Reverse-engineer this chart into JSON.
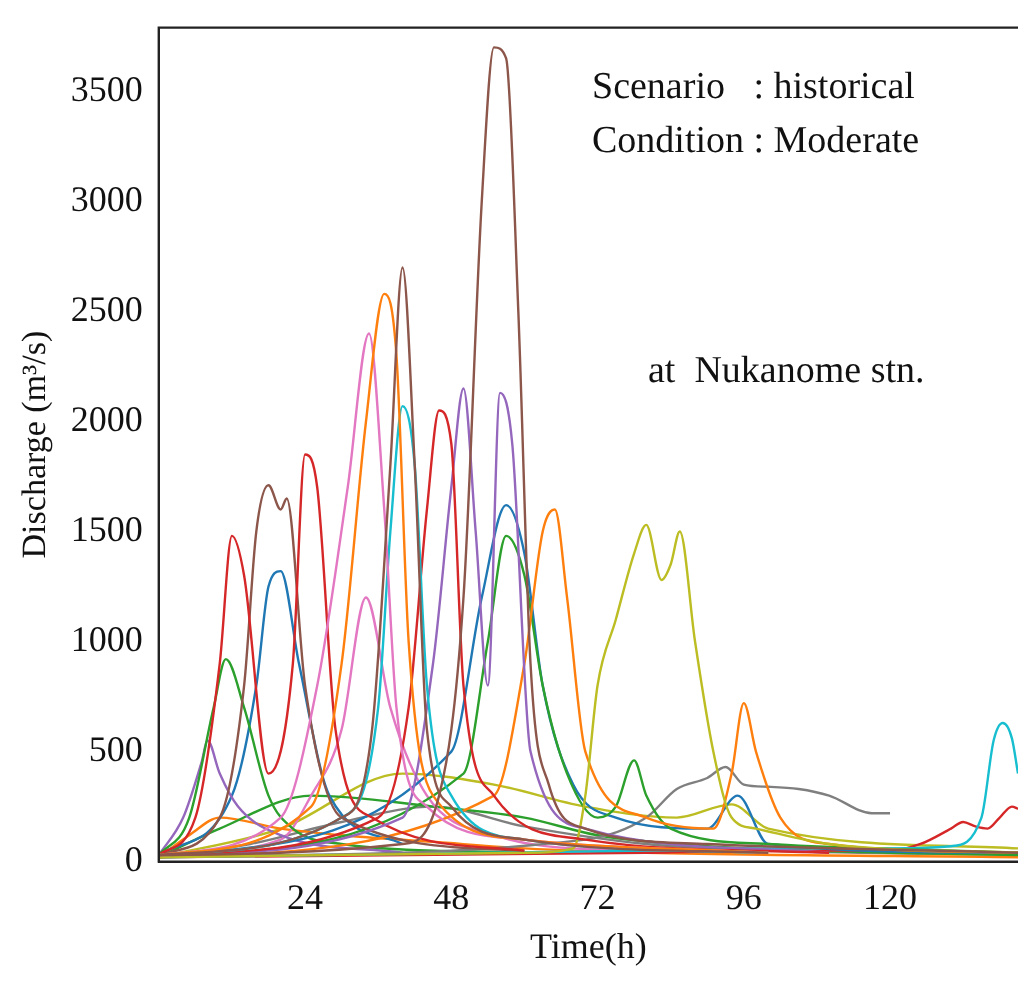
{
  "chart_data": {
    "type": "line",
    "xlabel": "Time(h)",
    "ylabel": "Discharge (m³/s)",
    "annotations": [
      "Scenario   : historical",
      "Condition : Moderate",
      "at  Nukanome stn."
    ],
    "xlim": [
      0,
      141
    ],
    "xticks": [
      24,
      48,
      72,
      96,
      120
    ],
    "ylim": [
      0,
      3790
    ],
    "yticks": [
      0,
      500,
      1000,
      1500,
      2000,
      2500,
      3000,
      3500
    ],
    "grid": false,
    "legend": false,
    "marker": "none",
    "line_style": "solid",
    "series": [
      {
        "color": "#8c564b",
        "x": [
          0,
          40,
          46,
          50,
          53,
          55,
          57,
          59,
          61,
          64,
          70,
          90,
          141
        ],
        "values": [
          30,
          80,
          300,
          1200,
          3000,
          3700,
          3650,
          2500,
          900,
          350,
          150,
          80,
          40
        ]
      },
      {
        "color": "#8c564b",
        "x": [
          0,
          30,
          35,
          38,
          40,
          42,
          44,
          48,
          60,
          100
        ],
        "values": [
          30,
          200,
          600,
          1800,
          2700,
          1800,
          600,
          250,
          100,
          40
        ]
      },
      {
        "color": "#ff7f0e",
        "x": [
          0,
          25,
          30,
          34,
          37,
          39,
          41,
          45,
          60,
          100
        ],
        "values": [
          30,
          250,
          900,
          2000,
          2580,
          2300,
          1000,
          300,
          100,
          40
        ]
      },
      {
        "color": "#e377c2",
        "x": [
          0,
          20,
          26,
          31,
          34.5,
          37,
          39,
          44,
          60,
          100
        ],
        "values": [
          30,
          200,
          800,
          1700,
          2400,
          1600,
          700,
          250,
          100,
          40
        ]
      },
      {
        "color": "#17becf",
        "x": [
          0,
          30,
          36,
          38,
          40,
          42,
          44,
          48,
          60,
          100
        ],
        "values": [
          30,
          200,
          700,
          1500,
          2070,
          1800,
          800,
          300,
          100,
          40
        ]
      },
      {
        "color": "#d62728",
        "x": [
          0,
          36,
          41,
          44,
          46,
          48,
          50,
          55,
          70,
          110
        ],
        "values": [
          30,
          200,
          700,
          1600,
          2050,
          1900,
          800,
          300,
          100,
          40
        ]
      },
      {
        "color": "#9467bd",
        "x": [
          0,
          40,
          45,
          48,
          50,
          52,
          54,
          56,
          58,
          61,
          70,
          110
        ],
        "values": [
          30,
          200,
          900,
          1700,
          2150,
          1500,
          800,
          2130,
          1900,
          500,
          150,
          40
        ]
      },
      {
        "color": "#d62728",
        "x": [
          0,
          6,
          10,
          12,
          14,
          18,
          22,
          24,
          26,
          29,
          35,
          60
        ],
        "values": [
          30,
          200,
          900,
          1480,
          1300,
          400,
          900,
          1850,
          1700,
          600,
          200,
          50
        ]
      },
      {
        "color": "#8c564b",
        "x": [
          0,
          10,
          14,
          16,
          18,
          20,
          21,
          24,
          30,
          60
        ],
        "values": [
          30,
          200,
          800,
          1500,
          1710,
          1600,
          1650,
          800,
          200,
          50
        ]
      },
      {
        "color": "#bcbd22",
        "x": [
          0,
          60,
          68,
          70,
          72,
          75,
          78,
          80,
          82.5,
          84,
          85.5,
          88,
          91,
          94,
          98,
          110,
          141
        ],
        "values": [
          20,
          40,
          60,
          300,
          800,
          1100,
          1400,
          1530,
          1280,
          1350,
          1500,
          1000,
          500,
          200,
          150,
          80,
          40
        ]
      },
      {
        "color": "#ff7f0e",
        "x": [
          0,
          55,
          60,
          63,
          65,
          67,
          70,
          80,
          91,
          94,
          96,
          98,
          102,
          110,
          141
        ],
        "values": [
          20,
          300,
          900,
          1500,
          1600,
          1200,
          500,
          200,
          150,
          400,
          720,
          500,
          200,
          80,
          40
        ]
      },
      {
        "color": "#2ca02c",
        "x": [
          0,
          50,
          54,
          57,
          60,
          63,
          67,
          72,
          75,
          78,
          80,
          84,
          100,
          141
        ],
        "values": [
          20,
          400,
          1000,
          1480,
          1300,
          800,
          400,
          200,
          250,
          460,
          300,
          150,
          80,
          40
        ]
      },
      {
        "color": "#1f77b4",
        "x": [
          0,
          48,
          53,
          57,
          60,
          63,
          68,
          75,
          90,
          95,
          100,
          141
        ],
        "values": [
          20,
          500,
          1200,
          1620,
          1400,
          800,
          350,
          200,
          150,
          300,
          80,
          40
        ]
      },
      {
        "color": "#7f7f7f",
        "x": [
          0,
          70,
          80,
          85,
          90,
          93,
          96,
          100,
          105,
          110,
          117,
          120
        ],
        "values": [
          20,
          100,
          200,
          330,
          380,
          430,
          350,
          340,
          330,
          300,
          220,
          220
        ]
      },
      {
        "color": "#17becf",
        "x": [
          0,
          80,
          100,
          120,
          130,
          135,
          137,
          138.5,
          140,
          141
        ],
        "values": [
          20,
          50,
          60,
          60,
          70,
          200,
          550,
          630,
          560,
          400
        ]
      },
      {
        "color": "#d62728",
        "x": [
          0,
          80,
          100,
          120,
          125,
          130,
          132,
          134,
          136,
          138,
          140,
          141
        ],
        "values": [
          20,
          40,
          50,
          50,
          80,
          150,
          180,
          160,
          150,
          200,
          250,
          240
        ]
      },
      {
        "color": "#2ca02c",
        "x": [
          0,
          5,
          9,
          11,
          14,
          18,
          22,
          30,
          60
        ],
        "values": [
          30,
          200,
          700,
          920,
          700,
          300,
          150,
          80,
          40
        ]
      },
      {
        "color": "#9467bd",
        "x": [
          0,
          4,
          7,
          8,
          10,
          13,
          20,
          40
        ],
        "values": [
          30,
          200,
          450,
          550,
          400,
          250,
          120,
          40
        ]
      },
      {
        "color": "#1f77b4",
        "x": [
          0,
          12,
          16,
          18,
          20,
          23,
          28,
          40
        ],
        "values": [
          30,
          300,
          800,
          1250,
          1320,
          900,
          300,
          80
        ]
      },
      {
        "color": "#e377c2",
        "x": [
          0,
          20,
          25,
          30,
          34,
          38,
          44,
          55,
          80
        ],
        "values": [
          30,
          100,
          300,
          600,
          1200,
          700,
          300,
          120,
          40
        ]
      },
      {
        "color": "#2ca02c",
        "x": [
          0,
          10,
          25,
          45,
          60,
          72,
          90,
          120,
          141
        ],
        "values": [
          20,
          150,
          300,
          250,
          200,
          120,
          70,
          40,
          30
        ]
      },
      {
        "color": "#ff7f0e",
        "x": [
          0,
          5,
          10,
          20,
          30,
          45,
          60,
          80,
          141
        ],
        "values": [
          20,
          120,
          200,
          150,
          120,
          90,
          60,
          40,
          20
        ]
      },
      {
        "color": "#bcbd22",
        "x": [
          0,
          20,
          40,
          55,
          70,
          85,
          94,
          100,
          141
        ],
        "values": [
          20,
          150,
          400,
          350,
          250,
          200,
          260,
          150,
          60
        ]
      },
      {
        "color": "#7f7f7f",
        "x": [
          0,
          15,
          30,
          45,
          60,
          80,
          100,
          141
        ],
        "values": [
          20,
          80,
          180,
          250,
          160,
          80,
          50,
          30
        ]
      }
    ]
  }
}
